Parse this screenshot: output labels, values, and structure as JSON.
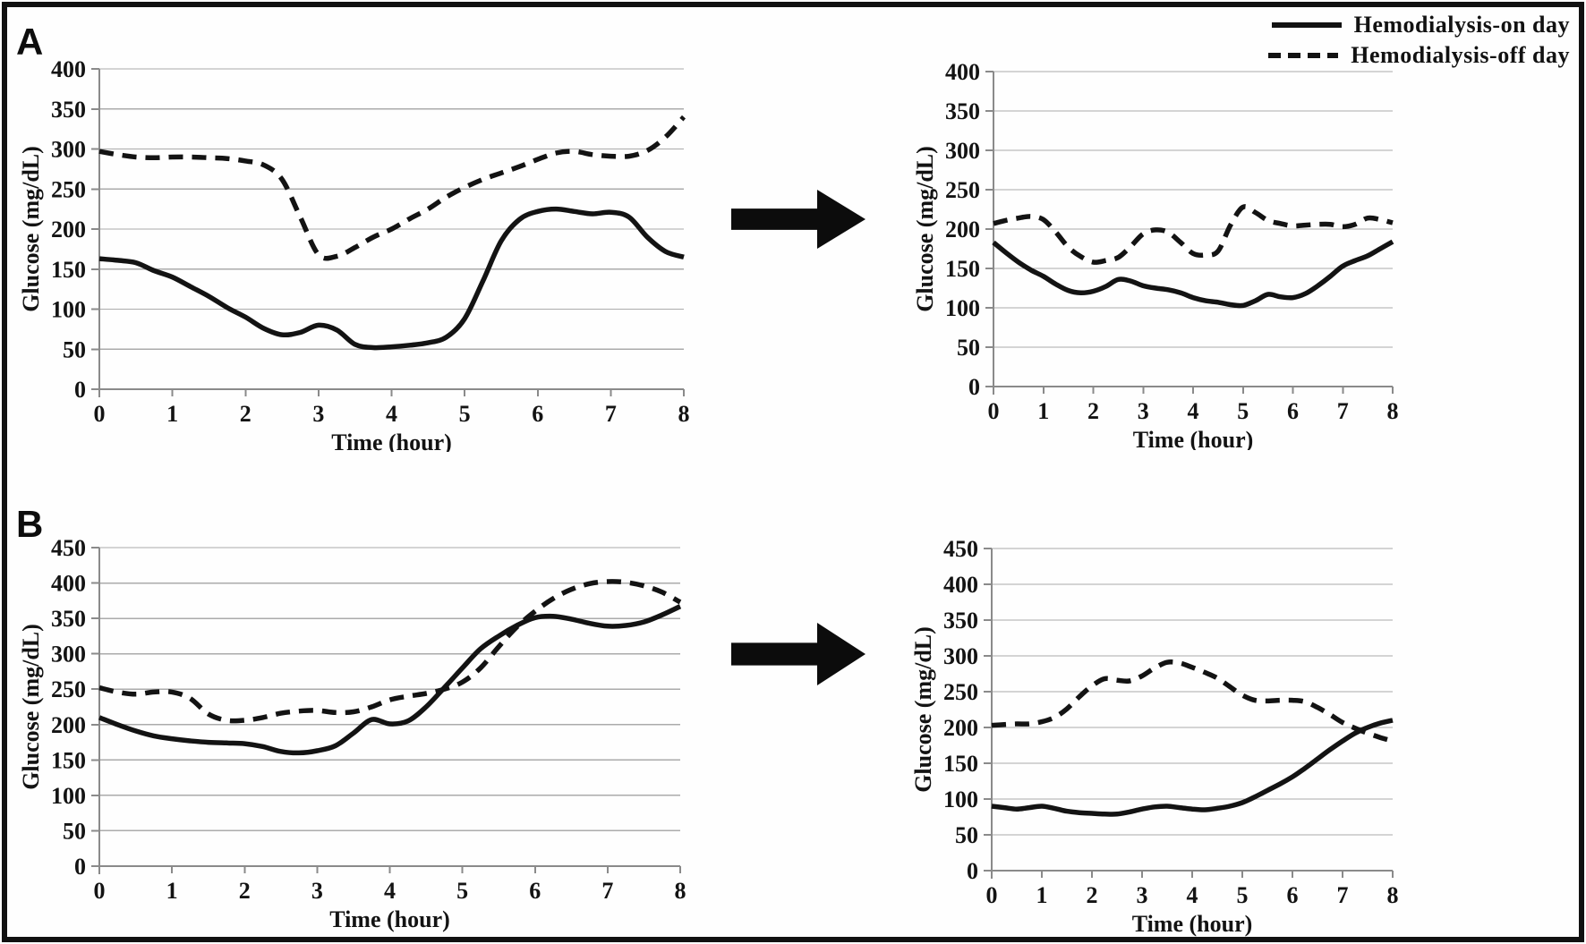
{
  "figure": {
    "panel_a_label": "A",
    "panel_b_label": "B",
    "arrow_icon": "right-block-arrow",
    "line_color": "#131313",
    "grid_color": "#ababab",
    "axis_color": "#8a8a8a"
  },
  "legend": {
    "items": [
      {
        "label": "Hemodialysis-on day",
        "style": "solid"
      },
      {
        "label": "Hemodialysis-off day",
        "style": "dashed"
      }
    ]
  },
  "chart_data": [
    {
      "id": "panel-a-left",
      "type": "line",
      "panel": "A",
      "position": "before-arrow",
      "xlabel": "Time (hour)",
      "ylabel": "Glucose (mg/dL)",
      "xlim": [
        0,
        8
      ],
      "ylim": [
        0,
        400
      ],
      "xticks": [
        0,
        1,
        2,
        3,
        4,
        5,
        6,
        7,
        8
      ],
      "yticks": [
        0,
        50,
        100,
        150,
        200,
        250,
        300,
        350,
        400
      ],
      "grid": true,
      "legend_position": "top-right-of-figure",
      "x_step": 0.25,
      "series": [
        {
          "name": "Hemodialysis-on day",
          "style": "solid",
          "values": [
            163,
            161,
            158,
            148,
            140,
            128,
            116,
            102,
            90,
            76,
            68,
            71,
            80,
            74,
            56,
            52,
            53,
            55,
            58,
            65,
            88,
            135,
            185,
            212,
            222,
            225,
            222,
            219,
            221,
            215,
            190,
            172,
            165
          ]
        },
        {
          "name": "Hemodialysis-off day",
          "style": "dashed",
          "values": [
            297,
            293,
            290,
            289,
            290,
            290,
            289,
            288,
            285,
            280,
            262,
            215,
            168,
            166,
            177,
            190,
            200,
            213,
            225,
            240,
            252,
            262,
            270,
            278,
            287,
            295,
            297,
            293,
            291,
            291,
            298,
            315,
            340
          ]
        }
      ]
    },
    {
      "id": "panel-a-right",
      "type": "line",
      "panel": "A",
      "position": "after-arrow",
      "xlabel": "Time (hour)",
      "ylabel": "Glucose (mg/dL)",
      "xlim": [
        0,
        8
      ],
      "ylim": [
        0,
        400
      ],
      "xticks": [
        0,
        1,
        2,
        3,
        4,
        5,
        6,
        7,
        8
      ],
      "yticks": [
        0,
        50,
        100,
        150,
        200,
        250,
        300,
        350,
        400
      ],
      "grid": true,
      "x_step": 0.25,
      "series": [
        {
          "name": "Hemodialysis-on day",
          "style": "solid",
          "values": [
            183,
            170,
            158,
            148,
            140,
            130,
            122,
            119,
            121,
            127,
            136,
            134,
            128,
            125,
            123,
            119,
            113,
            109,
            107,
            104,
            103,
            109,
            117,
            114,
            113,
            118,
            128,
            140,
            153,
            160,
            166,
            175,
            184
          ]
        },
        {
          "name": "Hemodialysis-off day",
          "style": "dashed",
          "values": [
            207,
            211,
            214,
            216,
            212,
            196,
            177,
            165,
            158,
            160,
            164,
            178,
            194,
            199,
            196,
            183,
            169,
            167,
            172,
            205,
            228,
            221,
            211,
            207,
            204,
            205,
            206,
            206,
            203,
            206,
            214,
            212,
            208
          ]
        }
      ]
    },
    {
      "id": "panel-b-left",
      "type": "line",
      "panel": "B",
      "position": "before-arrow",
      "xlabel": "Time (hour)",
      "ylabel": "Glucose (mg/dL)",
      "xlim": [
        0,
        8
      ],
      "ylim": [
        0,
        450
      ],
      "xticks": [
        0,
        1,
        2,
        3,
        4,
        5,
        6,
        7,
        8
      ],
      "yticks": [
        0,
        50,
        100,
        150,
        200,
        250,
        300,
        350,
        400,
        450
      ],
      "grid": true,
      "x_step": 0.25,
      "series": [
        {
          "name": "Hemodialysis-on day",
          "style": "solid",
          "values": [
            210,
            200,
            191,
            184,
            180,
            177,
            175,
            174,
            173,
            169,
            162,
            160,
            163,
            170,
            188,
            207,
            201,
            205,
            225,
            252,
            280,
            307,
            325,
            340,
            351,
            353,
            349,
            343,
            339,
            340,
            345,
            355,
            367
          ]
        },
        {
          "name": "Hemodialysis-off day",
          "style": "dashed",
          "values": [
            252,
            246,
            243,
            246,
            246,
            237,
            215,
            206,
            206,
            210,
            216,
            219,
            220,
            217,
            218,
            225,
            235,
            240,
            244,
            250,
            260,
            280,
            310,
            338,
            360,
            378,
            391,
            399,
            402,
            401,
            396,
            387,
            373
          ]
        }
      ]
    },
    {
      "id": "panel-b-right",
      "type": "line",
      "panel": "B",
      "position": "after-arrow",
      "xlabel": "Time (hour)",
      "ylabel": "Glucose (mg/dL)",
      "xlim": [
        0,
        8
      ],
      "ylim": [
        0,
        450
      ],
      "xticks": [
        0,
        1,
        2,
        3,
        4,
        5,
        6,
        7,
        8
      ],
      "yticks": [
        0,
        50,
        100,
        150,
        200,
        250,
        300,
        350,
        400,
        450
      ],
      "grid": true,
      "x_step": 0.25,
      "series": [
        {
          "name": "Hemodialysis-on day",
          "style": "solid",
          "values": [
            90,
            88,
            86,
            88,
            90,
            87,
            83,
            81,
            80,
            79,
            79,
            82,
            86,
            89,
            90,
            88,
            86,
            85,
            87,
            90,
            95,
            103,
            112,
            121,
            131,
            143,
            156,
            169,
            181,
            192,
            200,
            206,
            210
          ]
        },
        {
          "name": "Hemodialysis-off day",
          "style": "dashed",
          "values": [
            203,
            204,
            205,
            205,
            208,
            214,
            226,
            243,
            258,
            268,
            266,
            265,
            272,
            283,
            291,
            290,
            284,
            277,
            269,
            257,
            245,
            238,
            237,
            238,
            238,
            236,
            228,
            218,
            207,
            199,
            192,
            186,
            181
          ]
        }
      ]
    }
  ]
}
